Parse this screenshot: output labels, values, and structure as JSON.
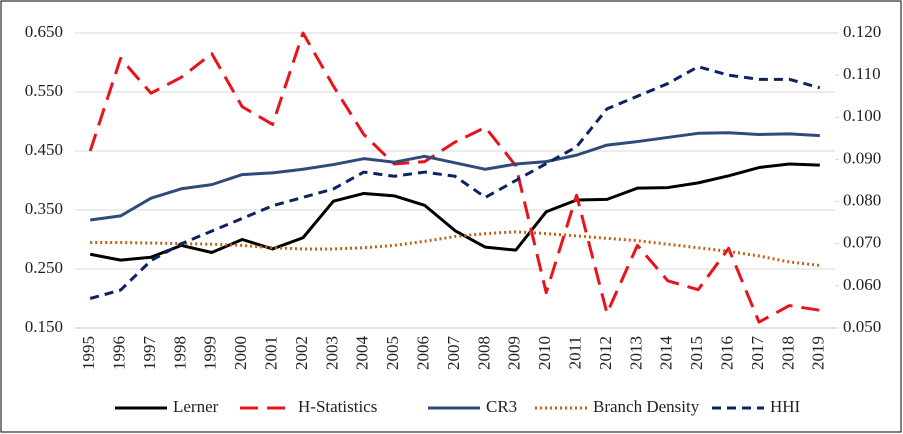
{
  "chart_data": {
    "type": "line",
    "categories": [
      "1995",
      "1996",
      "1997",
      "1998",
      "1999",
      "2000",
      "2001",
      "2002",
      "2003",
      "2004",
      "2005",
      "2006",
      "2007",
      "2008",
      "2009",
      "2010",
      "2011",
      "2012",
      "2013",
      "2014",
      "2015",
      "2016",
      "2017",
      "2018",
      "2019"
    ],
    "series": [
      {
        "name": "Lerner",
        "color": "#000000",
        "line_style": "solid",
        "values": [
          0.275,
          0.265,
          0.27,
          0.29,
          0.278,
          0.3,
          0.284,
          0.303,
          0.365,
          0.378,
          0.374,
          0.358,
          0.315,
          0.287,
          0.282,
          0.347,
          0.367,
          0.368,
          0.387,
          0.388,
          0.396,
          0.408,
          0.422,
          0.428,
          0.426
        ]
      },
      {
        "name": "H-Statistics",
        "color": "#e8141b",
        "line_style": "long-dash",
        "values": [
          0.45,
          0.607,
          0.548,
          0.575,
          0.615,
          0.525,
          0.495,
          0.65,
          0.56,
          0.478,
          0.428,
          0.432,
          0.465,
          0.49,
          0.425,
          0.21,
          0.375,
          0.175,
          0.29,
          0.23,
          0.215,
          0.285,
          0.16,
          0.188,
          0.18
        ]
      },
      {
        "name": "CR3",
        "color": "#2f4b7c",
        "line_style": "solid",
        "values": [
          0.333,
          0.34,
          0.37,
          0.386,
          0.393,
          0.41,
          0.413,
          0.419,
          0.427,
          0.437,
          0.431,
          0.441,
          0.43,
          0.419,
          0.428,
          0.432,
          0.443,
          0.46,
          0.466,
          0.473,
          0.48,
          0.481,
          0.478,
          0.479,
          0.476
        ]
      },
      {
        "name": "Branch Density",
        "color": "#c0601b",
        "line_style": "dotted",
        "values": [
          0.295,
          0.295,
          0.294,
          0.293,
          0.292,
          0.29,
          0.286,
          0.284,
          0.284,
          0.286,
          0.29,
          0.297,
          0.305,
          0.31,
          0.313,
          0.31,
          0.306,
          0.302,
          0.298,
          0.292,
          0.286,
          0.28,
          0.272,
          0.262,
          0.256
        ]
      },
      {
        "name": "HHI",
        "color": "#0d2260",
        "line_style": "dash",
        "axis": "y2",
        "values": [
          0.057,
          0.059,
          0.066,
          0.07,
          0.073,
          0.076,
          0.079,
          0.081,
          0.083,
          0.087,
          0.086,
          0.087,
          0.086,
          0.081,
          0.085,
          0.089,
          0.093,
          0.102,
          0.105,
          0.108,
          0.112,
          0.11,
          0.109,
          0.109,
          0.107
        ]
      }
    ],
    "ylim": [
      0.15,
      0.65
    ],
    "yticks": [
      {
        "value": 0.15,
        "label": "0.150"
      },
      {
        "value": 0.25,
        "label": "0.250"
      },
      {
        "value": 0.35,
        "label": "0.350"
      },
      {
        "value": 0.45,
        "label": "0.450"
      },
      {
        "value": 0.55,
        "label": "0.550"
      },
      {
        "value": 0.65,
        "label": "0.650"
      }
    ],
    "y2lim": [
      0.05,
      0.12
    ],
    "y2ticks": [
      {
        "value": 0.05,
        "label": "0.050"
      },
      {
        "value": 0.06,
        "label": "0.060"
      },
      {
        "value": 0.07,
        "label": "0.070"
      },
      {
        "value": 0.08,
        "label": "0.080"
      },
      {
        "value": 0.09,
        "label": "0.090"
      },
      {
        "value": 0.1,
        "label": "0.100"
      },
      {
        "value": 0.11,
        "label": "0.110"
      },
      {
        "value": 0.12,
        "label": "0.120"
      }
    ],
    "grid": true,
    "legend": "bottom"
  }
}
